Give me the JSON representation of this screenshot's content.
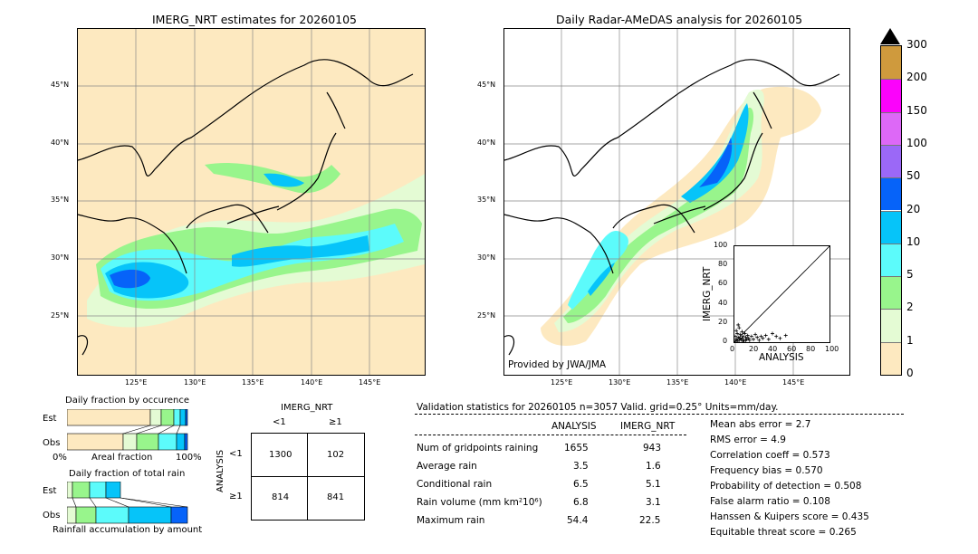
{
  "left_map": {
    "title": "IMERG_NRT estimates for 20260105",
    "lat_labels": [
      "45°N",
      "40°N",
      "35°N",
      "30°N",
      "25°N"
    ],
    "lon_labels": [
      "125°E",
      "130°E",
      "135°E",
      "140°E",
      "145°E"
    ]
  },
  "right_map": {
    "title": "Daily Radar-AMeDAS analysis for 20260105",
    "lat_labels": [
      "45°N",
      "40°N",
      "35°N",
      "30°N",
      "25°N"
    ],
    "lon_labels": [
      "125°E",
      "130°E",
      "135°E",
      "140°E",
      "145°E"
    ],
    "credit": "Provided by JWA/JMA"
  },
  "colorbar": {
    "levels": [
      "0",
      "1",
      "2",
      "5",
      "10",
      "20",
      "50",
      "100",
      "150",
      "200",
      "300"
    ],
    "colors": [
      "#fde9c0",
      "#e4fbd4",
      "#98f58c",
      "#5cfbfb",
      "#06c4f9",
      "#0663f9",
      "#9b68f7",
      "#dd68f7",
      "#fb03fb",
      "#cf9a3d"
    ]
  },
  "scatter": {
    "xlabel": "ANALYSIS",
    "ylabel": "IMERG_NRT",
    "ticks": [
      "0",
      "20",
      "40",
      "60",
      "80",
      "100"
    ],
    "chart_data": {
      "type": "scatter",
      "xlim": [
        0,
        100
      ],
      "ylim": [
        0,
        100
      ],
      "points": [
        [
          1,
          1
        ],
        [
          2,
          3
        ],
        [
          3,
          1
        ],
        [
          4,
          5
        ],
        [
          5,
          2
        ],
        [
          6,
          8
        ],
        [
          7,
          3
        ],
        [
          8,
          4
        ],
        [
          9,
          6
        ],
        [
          10,
          2
        ],
        [
          11,
          9
        ],
        [
          12,
          5
        ],
        [
          13,
          3
        ],
        [
          14,
          7
        ],
        [
          15,
          4
        ],
        [
          16,
          2
        ],
        [
          18,
          6
        ],
        [
          20,
          3
        ],
        [
          22,
          8
        ],
        [
          24,
          5
        ],
        [
          26,
          2
        ],
        [
          28,
          6
        ],
        [
          30,
          4
        ],
        [
          33,
          7
        ],
        [
          36,
          3
        ],
        [
          40,
          9
        ],
        [
          44,
          6
        ],
        [
          48,
          4
        ],
        [
          54,
          7
        ],
        [
          2,
          12
        ],
        [
          5,
          15
        ],
        [
          8,
          11
        ],
        [
          4,
          18
        ],
        [
          1,
          6
        ],
        [
          3,
          9
        ],
        [
          6,
          4
        ],
        [
          9,
          1
        ],
        [
          12,
          2
        ]
      ]
    }
  },
  "occurrence": {
    "title": "Daily fraction by occurence",
    "row_est": "Est",
    "row_obs": "Obs",
    "axis_left": "0%",
    "axis_mid": "Areal fraction",
    "axis_right": "100%"
  },
  "rain_fraction": {
    "title": "Daily fraction of total rain",
    "row_est": "Est",
    "row_obs": "Obs",
    "footer": "Rainfall accumulation by amount"
  },
  "contingency": {
    "col_title": "IMERG_NRT",
    "col_lt": "<1",
    "col_ge": "≥1",
    "row_title": "ANALYSIS",
    "row_lt": "<1",
    "row_ge": "≥1",
    "c11": "1300",
    "c12": "102",
    "c21": "814",
    "c22": "841"
  },
  "validation": {
    "header": "Validation statistics for 20260105  n=3057 Valid. grid=0.25° Units=mm/day.",
    "col_analysis": "ANALYSIS",
    "col_imerg": "IMERG_NRT",
    "rows": [
      {
        "label": "Num of gridpoints raining",
        "analysis": "1655",
        "imerg": "943"
      },
      {
        "label": "Average rain",
        "analysis": "3.5",
        "imerg": "1.6"
      },
      {
        "label": "Conditional rain",
        "analysis": "6.5",
        "imerg": "5.1"
      },
      {
        "label": "Rain volume (mm km²10⁶)",
        "analysis": "6.8",
        "imerg": "3.1"
      },
      {
        "label": "Maximum rain",
        "analysis": "54.4",
        "imerg": "22.5"
      }
    ],
    "scores": [
      "Mean abs error =    2.7",
      "RMS error =    4.9",
      "Correlation coeff =  0.573",
      "Frequency bias =  0.570",
      "Probability of detection =  0.508",
      "False alarm ratio =  0.108",
      "Hanssen & Kuipers score =  0.435",
      "Equitable threat score =  0.265"
    ]
  }
}
